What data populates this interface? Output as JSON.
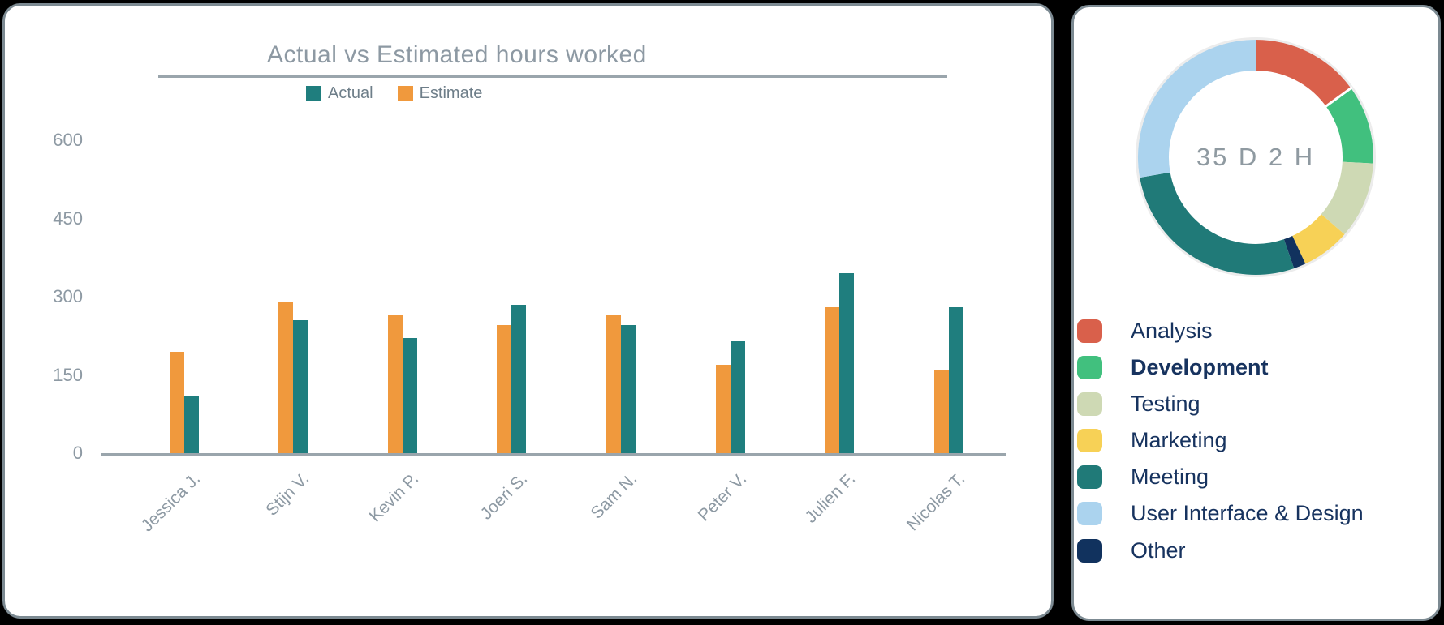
{
  "page": {
    "background": "#000000",
    "panel_border": "#7c8a92"
  },
  "bar_panel": {
    "title": "Actual vs Estimated hours worked",
    "legend": [
      {
        "label": "Actual",
        "color": "#1f7e7e"
      },
      {
        "label": "Estimate",
        "color": "#f0993d"
      }
    ]
  },
  "donut_panel": {
    "center_label": "35 D 2 H",
    "legend": [
      {
        "label": "Analysis",
        "color": "#d9604b",
        "bold": false
      },
      {
        "label": "Development",
        "color": "#41c07e",
        "bold": true
      },
      {
        "label": "Testing",
        "color": "#ced9b4",
        "bold": false
      },
      {
        "label": "Marketing",
        "color": "#f7d156",
        "bold": false
      },
      {
        "label": "Meeting",
        "color": "#207a78",
        "bold": false
      },
      {
        "label": "User Interface & Design",
        "color": "#abd3ee",
        "bold": false
      },
      {
        "label": "Other",
        "color": "#11325e",
        "bold": false
      }
    ]
  },
  "chart_data": [
    {
      "type": "bar",
      "title": "Actual vs Estimated hours worked",
      "categories": [
        "Jessica J.",
        "Stijn V.",
        "Kevin P.",
        "Joeri S.",
        "Sam N.",
        "Peter V.",
        "Julien F.",
        "Nicolas T."
      ],
      "series": [
        {
          "name": "Estimate",
          "color": "#f0993d",
          "values": [
            195,
            290,
            265,
            245,
            265,
            170,
            280,
            160
          ]
        },
        {
          "name": "Actual",
          "color": "#1f7e7e",
          "values": [
            110,
            255,
            220,
            285,
            245,
            215,
            345,
            280
          ]
        }
      ],
      "xlabel": "",
      "ylabel": "",
      "ylim": [
        0,
        600
      ],
      "yticks": [
        0,
        150,
        300,
        450,
        600
      ],
      "grid": false,
      "legend_position": "top",
      "bar_order_note": "Estimate drawn left of Actual in each pair"
    },
    {
      "type": "pie",
      "subtype": "donut",
      "center_label": "35 D 2 H",
      "slices_clockwise_from_top": [
        {
          "label": "Analysis",
          "color": "#d9604b",
          "angle_deg": 54,
          "percent": 15.0
        },
        {
          "label": "Development",
          "color": "#41c07e",
          "angle_deg": 39,
          "percent": 10.8,
          "highlighted": true
        },
        {
          "label": "Testing",
          "color": "#ced9b4",
          "angle_deg": 38,
          "percent": 10.6
        },
        {
          "label": "Marketing",
          "color": "#f7d156",
          "angle_deg": 24,
          "percent": 6.7
        },
        {
          "label": "Other",
          "color": "#11325e",
          "angle_deg": 6,
          "percent": 1.7
        },
        {
          "label": "Meeting",
          "color": "#207a78",
          "angle_deg": 99,
          "percent": 27.5
        },
        {
          "label": "User Interface & Design",
          "color": "#abd3ee",
          "angle_deg": 100,
          "percent": 27.7
        }
      ],
      "legend_position": "bottom-left"
    }
  ]
}
